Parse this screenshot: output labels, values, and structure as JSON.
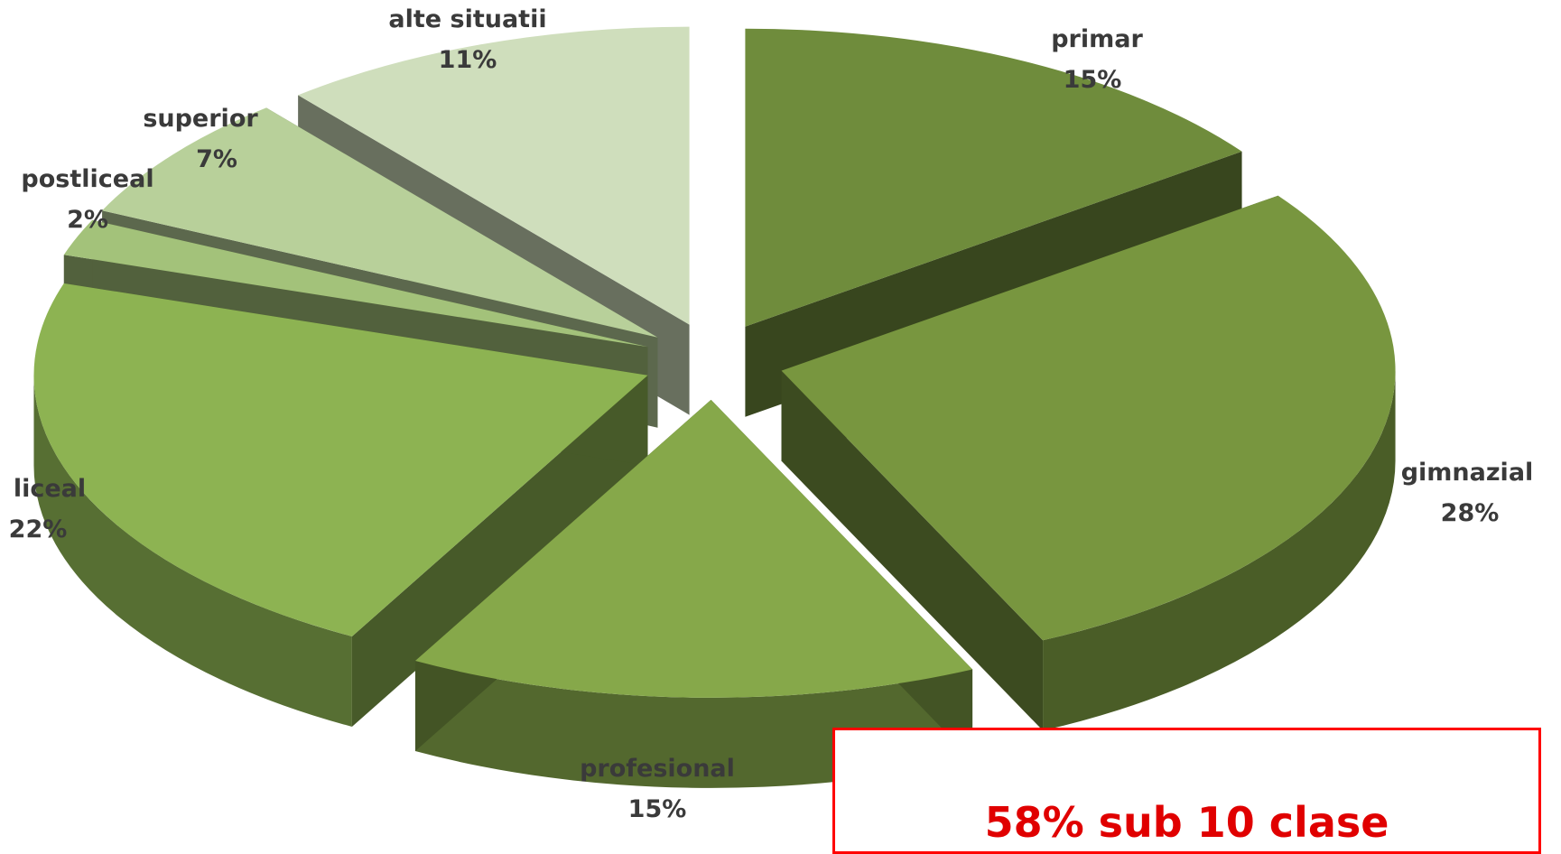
{
  "chart_data": {
    "type": "pie",
    "style": "3d-exploded",
    "title": "",
    "slices": [
      {
        "label": "primar",
        "value": 15,
        "value_label": "15%",
        "color": "#6f8c3c"
      },
      {
        "label": "gimnazial",
        "value": 28,
        "value_label": "28%",
        "color": "#78963f"
      },
      {
        "label": "profesional",
        "value": 15,
        "value_label": "15%",
        "color": "#86a84a"
      },
      {
        "label": "liceal",
        "value": 22,
        "value_label": "22%",
        "color": "#8db352"
      },
      {
        "label": "postliceal",
        "value": 2,
        "value_label": "2%",
        "color": "#a3c27a"
      },
      {
        "label": "superior",
        "value": 7,
        "value_label": "7%",
        "color": "#b8d09a"
      },
      {
        "label": "alte situatii",
        "value": 11,
        "value_label": "11%",
        "color": "#cfdebc"
      }
    ]
  },
  "callout": {
    "text": "58% sub 10 clase",
    "border_color": "#ff0000",
    "text_color": "#e00000"
  }
}
